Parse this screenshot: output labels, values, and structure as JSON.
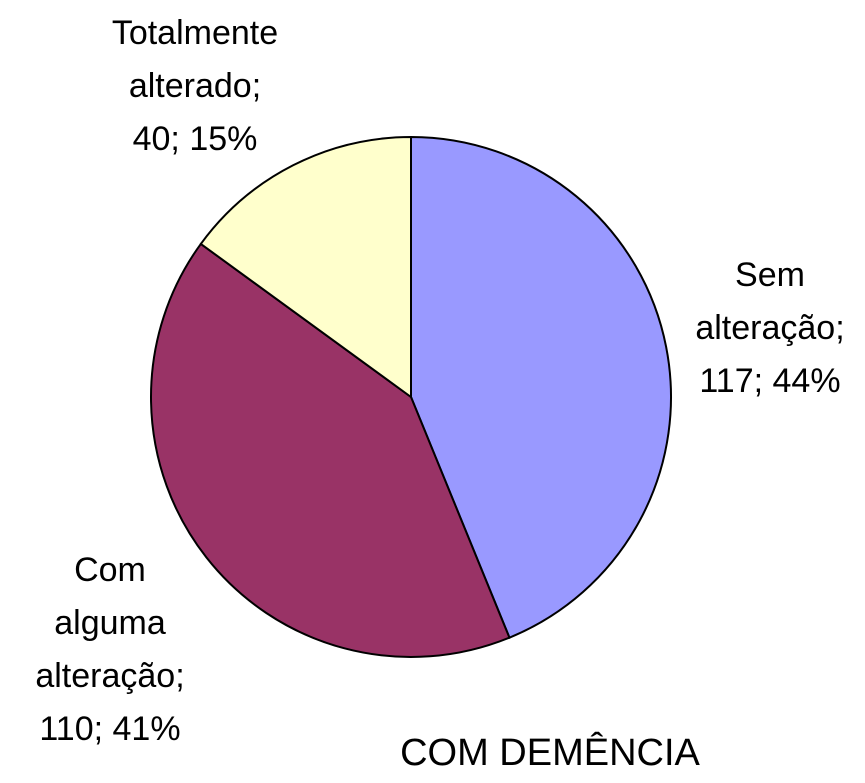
{
  "chart_data": {
    "type": "pie",
    "title": "COM DEMÊNCIA",
    "values": [
      117,
      110,
      40
    ],
    "labels": [
      [
        "Sem",
        "alteração;",
        "117; 44%"
      ],
      [
        "Com",
        "alguma",
        "alteração;",
        "110; 41%"
      ],
      [
        "Totalmente",
        "alterado;",
        "40; 15%"
      ]
    ],
    "colors": [
      "#9999ff",
      "#993366",
      "#ffffcc"
    ]
  }
}
